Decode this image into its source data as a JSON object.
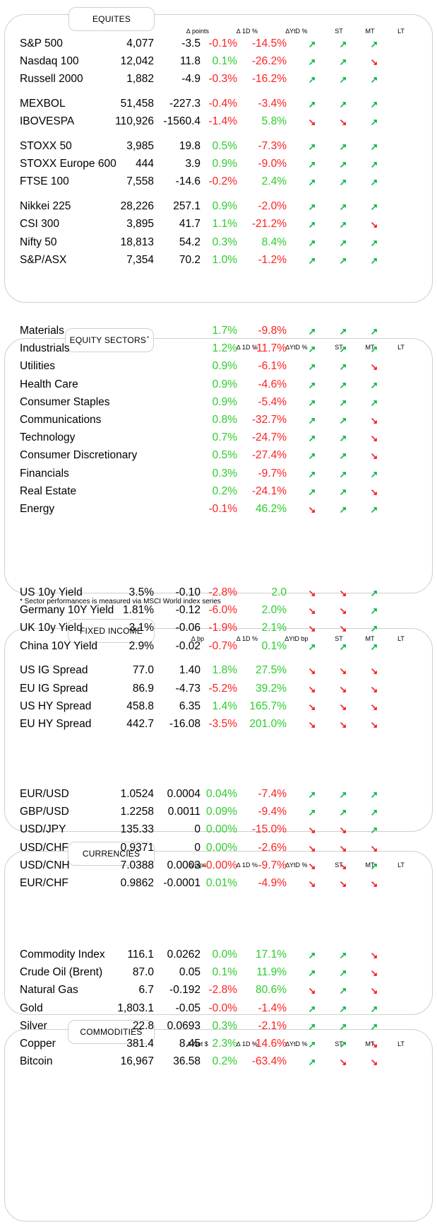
{
  "equities": {
    "title": "EQUITES",
    "headers": {
      "change": "∆ points",
      "d1": "∆ 1D %",
      "ytd": "∆YtD %",
      "st": "ST",
      "mt": "MT",
      "lt": "LT"
    },
    "groups": [
      [
        {
          "name": "S&P 500",
          "price": "4,077",
          "change": "-3.5",
          "d1": "-0.1%",
          "ytd": "-14.5%",
          "st": "up",
          "mt": "up",
          "lt": "up"
        },
        {
          "name": "Nasdaq 100",
          "price": "12,042",
          "change": "11.8",
          "d1": "0.1%",
          "ytd": "-26.2%",
          "st": "up",
          "mt": "up",
          "lt": "down"
        },
        {
          "name": "Russell 2000",
          "price": "1,882",
          "change": "-4.9",
          "d1": "-0.3%",
          "ytd": "-16.2%",
          "st": "up",
          "mt": "up",
          "lt": "up"
        }
      ],
      [
        {
          "name": "MEXBOL",
          "price": "51,458",
          "change": "-227.3",
          "d1": "-0.4%",
          "ytd": "-3.4%",
          "st": "up",
          "mt": "up",
          "lt": "up"
        },
        {
          "name": "IBOVESPA",
          "price": "110,926",
          "change": "-1560.4",
          "d1": "-1.4%",
          "ytd": "5.8%",
          "st": "down",
          "mt": "down",
          "lt": "up"
        }
      ],
      [
        {
          "name": "STOXX 50",
          "price": "3,985",
          "change": "19.8",
          "d1": "0.5%",
          "ytd": "-7.3%",
          "st": "up",
          "mt": "up",
          "lt": "up"
        },
        {
          "name": "STOXX Europe 600",
          "price": "444",
          "change": "3.9",
          "d1": "0.9%",
          "ytd": "-9.0%",
          "st": "up",
          "mt": "up",
          "lt": "up"
        },
        {
          "name": "FTSE 100",
          "price": "7,558",
          "change": "-14.6",
          "d1": "-0.2%",
          "ytd": "2.4%",
          "st": "up",
          "mt": "up",
          "lt": "up"
        }
      ],
      [
        {
          "name": "Nikkei 225",
          "price": "28,226",
          "change": "257.1",
          "d1": "0.9%",
          "ytd": "-2.0%",
          "st": "up",
          "mt": "up",
          "lt": "up"
        },
        {
          "name": "CSI 300",
          "price": "3,895",
          "change": "41.7",
          "d1": "1.1%",
          "ytd": "-21.2%",
          "st": "up",
          "mt": "up",
          "lt": "down"
        },
        {
          "name": "Nifty  50",
          "price": "18,813",
          "change": "54.2",
          "d1": "0.3%",
          "ytd": "8.4%",
          "st": "up",
          "mt": "up",
          "lt": "up"
        },
        {
          "name": "S&P/ASX",
          "price": "7,354",
          "change": "70.2",
          "d1": "1.0%",
          "ytd": "-1.2%",
          "st": "up",
          "mt": "up",
          "lt": "up"
        }
      ]
    ]
  },
  "sectors": {
    "title": "EQUITY SECTORS",
    "title_mark": "*",
    "headers": {
      "d1": "∆ 1D %",
      "ytd": "∆YtD %",
      "st": "ST",
      "mt": "MT",
      "lt": "LT"
    },
    "rows": [
      {
        "name": "Materials",
        "d1": "1.7%",
        "ytd": "-9.8%",
        "st": "up",
        "mt": "up",
        "lt": "up"
      },
      {
        "name": "Industrials",
        "d1": "1.2%",
        "ytd": "-11.7%",
        "st": "up",
        "mt": "up",
        "lt": "up"
      },
      {
        "name": "Utilities",
        "d1": "0.9%",
        "ytd": "-6.1%",
        "st": "up",
        "mt": "up",
        "lt": "down"
      },
      {
        "name": "Health Care",
        "d1": "0.9%",
        "ytd": "-4.6%",
        "st": "up",
        "mt": "up",
        "lt": "up"
      },
      {
        "name": "Consumer Staples",
        "d1": "0.9%",
        "ytd": "-5.4%",
        "st": "up",
        "mt": "up",
        "lt": "up"
      },
      {
        "name": "Communications",
        "d1": "0.8%",
        "ytd": "-32.7%",
        "st": "up",
        "mt": "up",
        "lt": "down"
      },
      {
        "name": "Technology",
        "d1": "0.7%",
        "ytd": "-24.7%",
        "st": "up",
        "mt": "up",
        "lt": "down"
      },
      {
        "name": "Consumer Discretionary",
        "d1": "0.5%",
        "ytd": "-27.4%",
        "st": "up",
        "mt": "up",
        "lt": "down"
      },
      {
        "name": "Financials",
        "d1": "0.3%",
        "ytd": "-9.7%",
        "st": "up",
        "mt": "up",
        "lt": "up"
      },
      {
        "name": "Real Estate",
        "d1": "0.2%",
        "ytd": "-24.1%",
        "st": "up",
        "mt": "up",
        "lt": "down"
      },
      {
        "name": "Energy",
        "d1": "-0.1%",
        "ytd": "46.2%",
        "st": "down",
        "mt": "up",
        "lt": "up"
      }
    ],
    "footnote": "* Sector performances is measured via MSCI World index series"
  },
  "fixed_income": {
    "title": "FIXED INCOME",
    "headers": {
      "change": "∆ bp",
      "d1": "∆ 1D %",
      "ytd": "∆YtD bp",
      "st": "ST",
      "mt": "MT",
      "lt": "LT"
    },
    "groups": [
      [
        {
          "name": "US 10y Yield",
          "price": "3.5%",
          "change": "-0.10",
          "d1": "-2.8%",
          "ytd": "2.0",
          "st": "down",
          "mt": "down",
          "lt": "up"
        },
        {
          "name": "Germany 10Y Yield",
          "price": "1.81%",
          "change": "-0.12",
          "d1": "-6.0%",
          "ytd": "2.0%",
          "st": "down",
          "mt": "down",
          "lt": "up"
        },
        {
          "name": "UK 10y Yield",
          "price": "3.1%",
          "change": "-0.06",
          "d1": "-1.9%",
          "ytd": "2.1%",
          "st": "down",
          "mt": "down",
          "lt": "up"
        },
        {
          "name": "China 10Y Yield",
          "price": "2.9%",
          "change": "-0.02",
          "d1": "-0.7%",
          "ytd": "0.1%",
          "st": "up",
          "mt": "up",
          "lt": "up"
        }
      ],
      [
        {
          "name": "US IG Spread",
          "price": "77.0",
          "change": "1.40",
          "d1": "1.8%",
          "ytd": "27.5%",
          "st": "down",
          "mt": "down",
          "lt": "down"
        },
        {
          "name": "EU IG Spread",
          "price": "86.9",
          "change": "-4.73",
          "d1": "-5.2%",
          "ytd": "39.2%",
          "st": "down",
          "mt": "down",
          "lt": "down"
        },
        {
          "name": "US HY Spread",
          "price": "458.8",
          "change": "6.35",
          "d1": "1.4%",
          "ytd": "165.7%",
          "st": "down",
          "mt": "down",
          "lt": "down"
        },
        {
          "name": "EU HY Spread",
          "price": "442.7",
          "change": "-16.08",
          "d1": "-3.5%",
          "ytd": "201.0%",
          "st": "down",
          "mt": "down",
          "lt": "down"
        }
      ]
    ]
  },
  "currencies": {
    "title": "CURRENCIES",
    "headers": {
      "change": "∆ pips",
      "d1": "∆ 1D %",
      "ytd": "∆YtD %",
      "st": "ST",
      "mt": "MT",
      "lt": "LT"
    },
    "rows": [
      {
        "name": "EUR/USD",
        "price": "1.0524",
        "change": "0.0004",
        "d1": "0.04%",
        "ytd": "-7.4%",
        "st": "up",
        "mt": "up",
        "lt": "up"
      },
      {
        "name": "GBP/USD",
        "price": "1.2258",
        "change": "0.0011",
        "d1": "0.09%",
        "ytd": "-9.4%",
        "st": "up",
        "mt": "up",
        "lt": "up"
      },
      {
        "name": "USD/JPY",
        "price": "135.33",
        "change": "0",
        "d1": "0.00%",
        "ytd": "-15.0%",
        "st": "down",
        "mt": "down",
        "lt": "up"
      },
      {
        "name": "USD/CHF",
        "price": "0.9371",
        "change": "0",
        "d1": "0.00%",
        "ytd": "-2.6%",
        "st": "down",
        "mt": "down",
        "lt": "down"
      },
      {
        "name": "USD/CNH",
        "price": "7.0388",
        "change": "0.0003",
        "d1": "-0.00%",
        "ytd": "-9.7%",
        "st": "down",
        "mt": "down",
        "lt": "up"
      },
      {
        "name": "EUR/CHF",
        "price": "0.9862",
        "change": "-0.0001",
        "d1": "0.01%",
        "ytd": "-4.9%",
        "st": "down",
        "mt": "down",
        "lt": "down"
      }
    ]
  },
  "commodities": {
    "title": "COMMODITIES",
    "headers": {
      "change": "∆ Net $",
      "d1": "∆ 1D %",
      "ytd": "∆YtD %",
      "st": "ST",
      "mt": "MT",
      "lt": "LT"
    },
    "rows": [
      {
        "name": "Commodity Index",
        "price": "116.1",
        "change": "0.0262",
        "d1": "0.0%",
        "ytd": "17.1%",
        "st": "up",
        "mt": "up",
        "lt": "down"
      },
      {
        "name": "Crude Oil (Brent)",
        "price": "87.0",
        "change": "0.05",
        "d1": "0.1%",
        "ytd": "11.9%",
        "st": "up",
        "mt": "up",
        "lt": "down"
      },
      {
        "name": "Natural Gas",
        "price": "6.7",
        "change": "-0.192",
        "d1": "-2.8%",
        "ytd": "80.6%",
        "st": "down",
        "mt": "up",
        "lt": "down"
      },
      {
        "name": "Gold",
        "price": "1,803.1",
        "change": "-0.05",
        "d1": "-0.0%",
        "ytd": "-1.4%",
        "st": "up",
        "mt": "up",
        "lt": "up"
      },
      {
        "name": "Silver",
        "price": "22.8",
        "change": "0.0693",
        "d1": "0.3%",
        "ytd": "-2.1%",
        "st": "up",
        "mt": "up",
        "lt": "up"
      },
      {
        "name": "Copper",
        "price": "381.4",
        "change": "8.45",
        "d1": "2.3%",
        "ytd": "-14.6%",
        "st": "up",
        "mt": "up",
        "lt": "down"
      },
      {
        "name": "Bitcoin",
        "price": "16,967",
        "change": "36.58",
        "d1": "0.2%",
        "ytd": "-63.4%",
        "st": "up",
        "mt": "down",
        "lt": "down"
      }
    ]
  },
  "colors": {
    "positive": "#2ccd2c",
    "negative": "#ff1f1f",
    "arrow_up": "#0fb24e",
    "arrow_down": "#ef1c1c",
    "border": "#cfcfcf"
  },
  "icons": {
    "up": "trend-up-arrow-icon",
    "down": "trend-down-arrow-icon"
  }
}
